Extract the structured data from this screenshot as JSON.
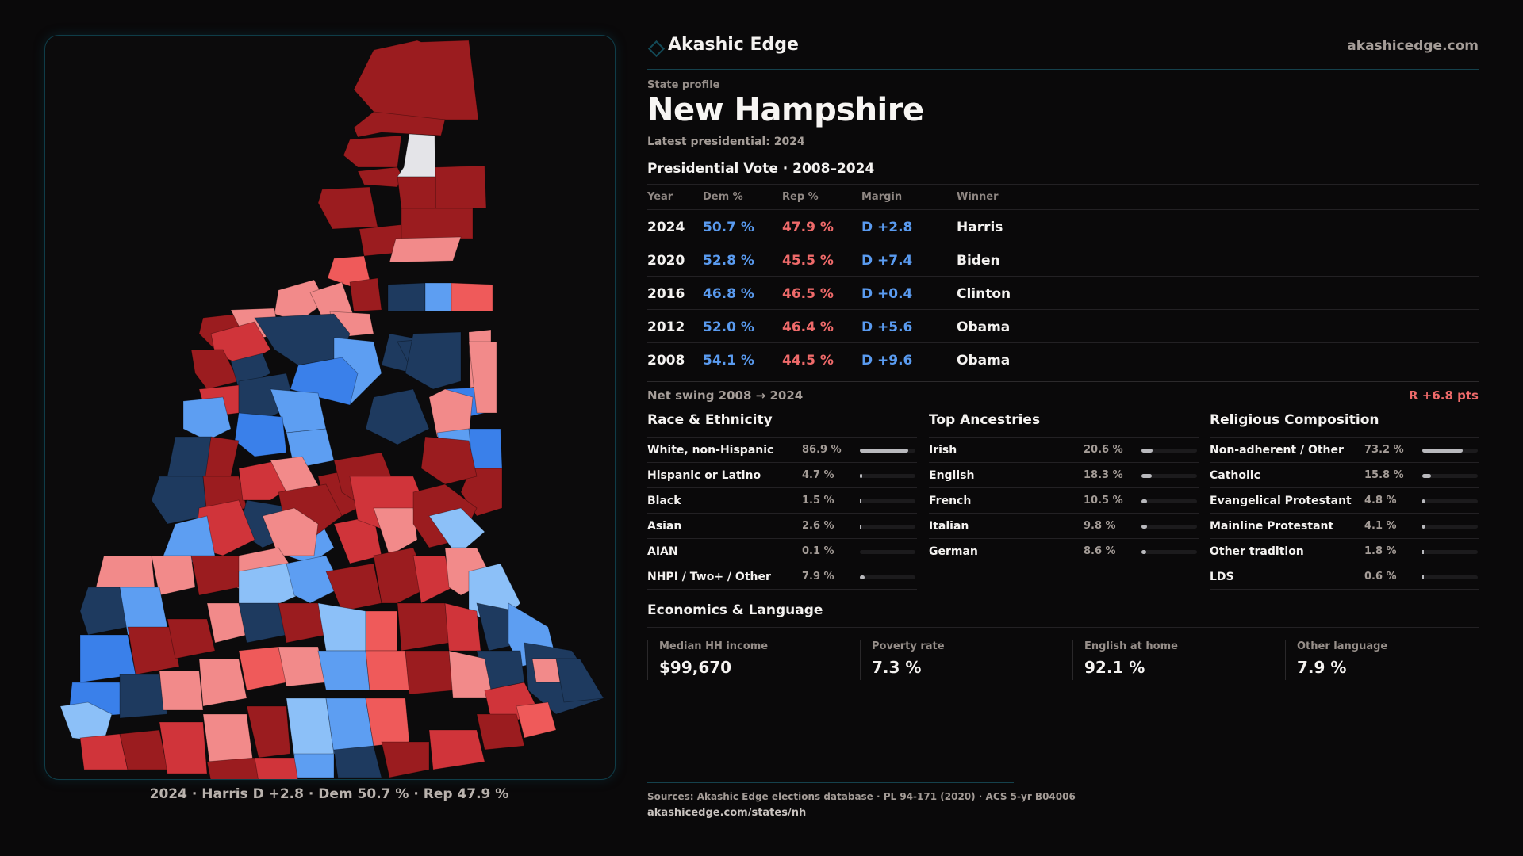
{
  "brand": {
    "name": "Akashic Edge",
    "url": "akashicedge.com",
    "icon": "diamond-outline-icon",
    "accent": "#134a57"
  },
  "profile": {
    "eyebrow": "State profile",
    "state": "New Hampshire",
    "latest": "Latest presidential: 2024"
  },
  "presidential": {
    "title": "Presidential Vote · 2008–2024",
    "headers": {
      "year": "Year",
      "dem": "Dem %",
      "rep": "Rep %",
      "margin": "Margin",
      "winner": "Winner"
    },
    "rows": [
      {
        "year": "2024",
        "dem": "50.7 %",
        "rep": "47.9  %",
        "margin": "D +2.8",
        "winner": "Harris"
      },
      {
        "year": "2020",
        "dem": "52.8 %",
        "rep": "45.5 %",
        "margin": "D +7.4",
        "winner": "Biden"
      },
      {
        "year": "2016",
        "dem": "46.8 %",
        "rep": "46.5 %",
        "margin": "D +0.4",
        "winner": "Clinton"
      },
      {
        "year": "2012",
        "dem": "52.0 %",
        "rep": "46.4 %",
        "margin": "D +5.6",
        "winner": "Obama"
      },
      {
        "year": "2008",
        "dem": "54.1 %",
        "rep": "44.5 %",
        "margin": "D +9.6",
        "winner": "Obama"
      }
    ],
    "swing_label": "Net swing 2008 → 2024",
    "swing_value": "R +6.8 pts",
    "colors": {
      "dem": "#5a9bf0",
      "rep": "#ef6a6a"
    }
  },
  "race": {
    "title": "Race & Ethnicity",
    "items": [
      {
        "label": "White, non-Hispanic",
        "value": "86.9 %",
        "pct": 86.9
      },
      {
        "label": "Hispanic or Latino",
        "value": "4.7 %",
        "pct": 4.7
      },
      {
        "label": "Black",
        "value": "1.5 %",
        "pct": 1.5
      },
      {
        "label": "Asian",
        "value": "2.6 %",
        "pct": 2.6
      },
      {
        "label": "AIAN",
        "value": "0.1 %",
        "pct": 0.1
      },
      {
        "label": "NHPI / Two+ / Other",
        "value": "7.9 %",
        "pct": 7.9
      }
    ]
  },
  "ancestry": {
    "title": "Top Ancestries",
    "items": [
      {
        "label": "Irish",
        "value": "20.6 %",
        "pct": 20.6
      },
      {
        "label": "English",
        "value": "18.3 %",
        "pct": 18.3
      },
      {
        "label": "French",
        "value": "10.5 %",
        "pct": 10.5
      },
      {
        "label": "Italian",
        "value": "9.8 %",
        "pct": 9.8
      },
      {
        "label": "German",
        "value": "8.6 %",
        "pct": 8.6
      }
    ]
  },
  "religion": {
    "title": "Religious Composition",
    "items": [
      {
        "label": "Non-adherent / Other",
        "value": "73.2 %",
        "pct": 73.2
      },
      {
        "label": "Catholic",
        "value": "15.8 %",
        "pct": 15.8
      },
      {
        "label": "Evangelical Protestant",
        "value": "4.8 %",
        "pct": 4.8
      },
      {
        "label": "Mainline Protestant",
        "value": "4.1 %",
        "pct": 4.1
      },
      {
        "label": "Other tradition",
        "value": "1.8 %",
        "pct": 1.8
      },
      {
        "label": "LDS",
        "value": "0.6 %",
        "pct": 0.6
      }
    ]
  },
  "economics": {
    "title": "Economics & Language",
    "stats": [
      {
        "label": "Median HH income",
        "value": "$99,670"
      },
      {
        "label": "Poverty rate",
        "value": "7.3 %"
      },
      {
        "label": "English at home",
        "value": "92.1 %"
      },
      {
        "label": "Other language",
        "value": "7.9 %"
      }
    ]
  },
  "map": {
    "caption": "2024 · Harris D +2.8 · Dem 50.7 % · Rep 47.9  %",
    "palette": {
      "safe_r": "#9b1c1f",
      "likely_r": "#d0343a",
      "lean_r": "#ef5a5a",
      "tilt_r": "#f28a8a",
      "tie": "#e4e4e8",
      "tilt_d": "#8cc0f8",
      "lean_d": "#5d9ef2",
      "likely_d": "#3a80ea",
      "safe_d": "#1e3a5f"
    }
  },
  "footer": {
    "sources": "Sources: Akashic Edge elections database · PL 94-171 (2020) · ACS 5-yr B04006",
    "url": "akashicedge.com/states/nh"
  }
}
